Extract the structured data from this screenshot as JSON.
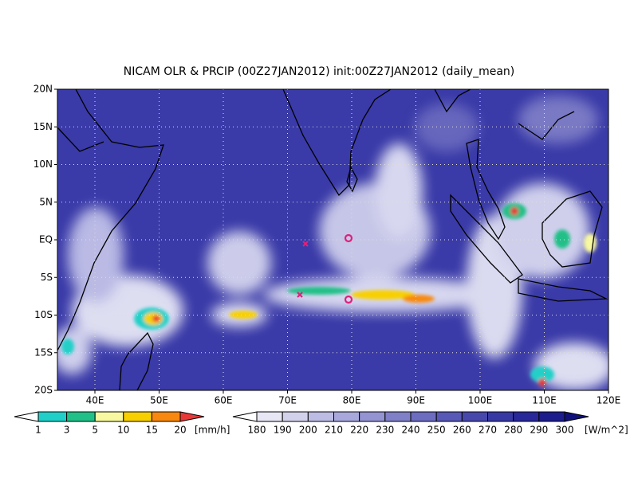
{
  "map": {
    "title": "NICAM OLR & PRCIP (00Z27JAN2012) init:00Z27JAN2012 (daily_mean)",
    "lat_labels": [
      "20N",
      "15N",
      "10N",
      "5N",
      "EQ",
      "5S",
      "10S",
      "15S",
      "20S"
    ],
    "lon_labels": [
      "40E",
      "50E",
      "60E",
      "70E",
      "80E",
      "90E",
      "100E",
      "110E",
      "120E"
    ],
    "precip_legend": {
      "labels": [
        "1",
        "3",
        "5",
        "10",
        "15",
        "20"
      ],
      "unit": "[mm/h]",
      "colors": [
        "#ffffff",
        "#20d0c8",
        "#20c088",
        "#f8f8a0",
        "#f8d000",
        "#f88810",
        "#e83838"
      ]
    },
    "olr_legend": {
      "labels": [
        "180",
        "190",
        "200",
        "210",
        "220",
        "230",
        "240",
        "250",
        "260",
        "270",
        "280",
        "290",
        "300"
      ],
      "unit": "[W/m^2]",
      "colors": [
        "#ffffff",
        "#e6e6f4",
        "#d2d2ec",
        "#bcbce4",
        "#a8a8dc",
        "#9494d2",
        "#8080c8",
        "#6c6cc0",
        "#5858b6",
        "#4848ac",
        "#3838a4",
        "#28289a",
        "#1c1c8c",
        "#10107a"
      ]
    }
  }
}
